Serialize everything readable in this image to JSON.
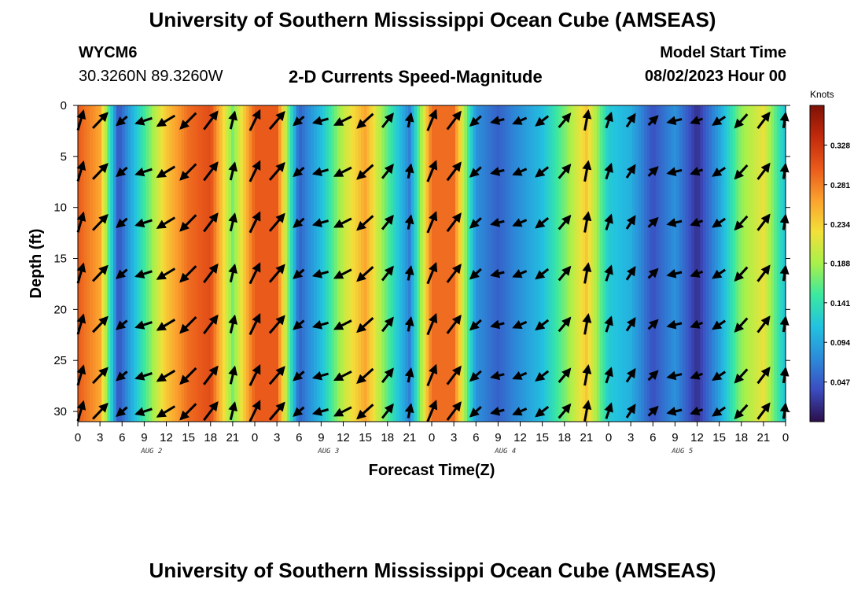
{
  "page": {
    "title_top": "University of Southern Mississippi Ocean Cube (AMSEAS)",
    "title_bottom": "University of Southern Mississippi Ocean Cube (AMSEAS)",
    "station": {
      "id": "WYCM6",
      "coords": "30.3260N  89.3260W"
    },
    "plot_title": "2-D Currents Speed-Magnitude",
    "model_start": {
      "label": "Model Start Time",
      "value": "08/02/2023 Hour 00"
    }
  },
  "chart_data": {
    "type": "heatmap",
    "title": "2-D Currents Speed-Magnitude",
    "xlabel": "Forecast Time(Z)",
    "ylabel": "Depth (ft)",
    "x_range_hours": [
      0,
      96
    ],
    "ylim": [
      0,
      31
    ],
    "y_inverted": true,
    "x_tick_hours": [
      0,
      3,
      6,
      9,
      12,
      15,
      18,
      21,
      24,
      27,
      30,
      33,
      36,
      39,
      42,
      45,
      48,
      51,
      54,
      57,
      60,
      63,
      66,
      69,
      72,
      75,
      78,
      81,
      84,
      87,
      90,
      93,
      96
    ],
    "x_tick_labels": [
      "0",
      "3",
      "6",
      "9",
      "12",
      "15",
      "18",
      "21",
      "0",
      "3",
      "6",
      "9",
      "12",
      "15",
      "18",
      "21",
      "0",
      "3",
      "6",
      "9",
      "12",
      "15",
      "18",
      "21",
      "0",
      "3",
      "6",
      "9",
      "12",
      "15",
      "18",
      "21",
      "0"
    ],
    "y_ticks": [
      0,
      5,
      10,
      15,
      20,
      25,
      30
    ],
    "y_tick_labels": [
      "0",
      "5",
      "10",
      "15",
      "20",
      "25",
      "30"
    ],
    "date_labels": [
      {
        "label": "AUG 2",
        "hour": 10
      },
      {
        "label": "AUG 3",
        "hour": 34
      },
      {
        "label": "AUG 4",
        "hour": 58
      },
      {
        "label": "AUG 5",
        "hour": 82
      }
    ],
    "colorbar": {
      "unit": "Knots",
      "range": [
        0,
        0.375
      ],
      "tick_labels": [
        "0.328",
        "0.281",
        "0.234",
        "0.188",
        "0.141",
        "0.094",
        "0.047"
      ],
      "tick_values": [
        0.328,
        0.281,
        0.234,
        0.188,
        0.141,
        0.094,
        0.047
      ],
      "colors": [
        "#2b0e4a",
        "#3b4cc0",
        "#2c8bd9",
        "#22c2e0",
        "#3be8a0",
        "#a8f04a",
        "#f3e03a",
        "#fba22e",
        "#ea5a1b",
        "#c22a0c",
        "#7e1106"
      ]
    },
    "speed_profile": {
      "hours": [
        0,
        3,
        5.5,
        8,
        12,
        15,
        18,
        21,
        24,
        27,
        30,
        33,
        36,
        39,
        42,
        45,
        48,
        51,
        54,
        57,
        60,
        63,
        66,
        69,
        72,
        75,
        78,
        81,
        84,
        87,
        90,
        93,
        96
      ],
      "speeds": [
        0.3,
        0.26,
        0.04,
        0.12,
        0.24,
        0.29,
        0.31,
        0.17,
        0.3,
        0.3,
        0.05,
        0.11,
        0.2,
        0.26,
        0.16,
        0.07,
        0.29,
        0.29,
        0.08,
        0.05,
        0.08,
        0.11,
        0.17,
        0.24,
        0.12,
        0.1,
        0.04,
        0.08,
        0.02,
        0.09,
        0.18,
        0.22,
        0.11
      ]
    },
    "arrow_hours": [
      0,
      3,
      6,
      9,
      12,
      15,
      18,
      21,
      24,
      27,
      30,
      33,
      36,
      39,
      42,
      45,
      48,
      51,
      54,
      57,
      60,
      63,
      66,
      69,
      72,
      75,
      78,
      81,
      84,
      87,
      90,
      93,
      96
    ],
    "arrow_depths": [
      1.5,
      6.5,
      11.5,
      16.5,
      21.5,
      26.5,
      30
    ]
  }
}
